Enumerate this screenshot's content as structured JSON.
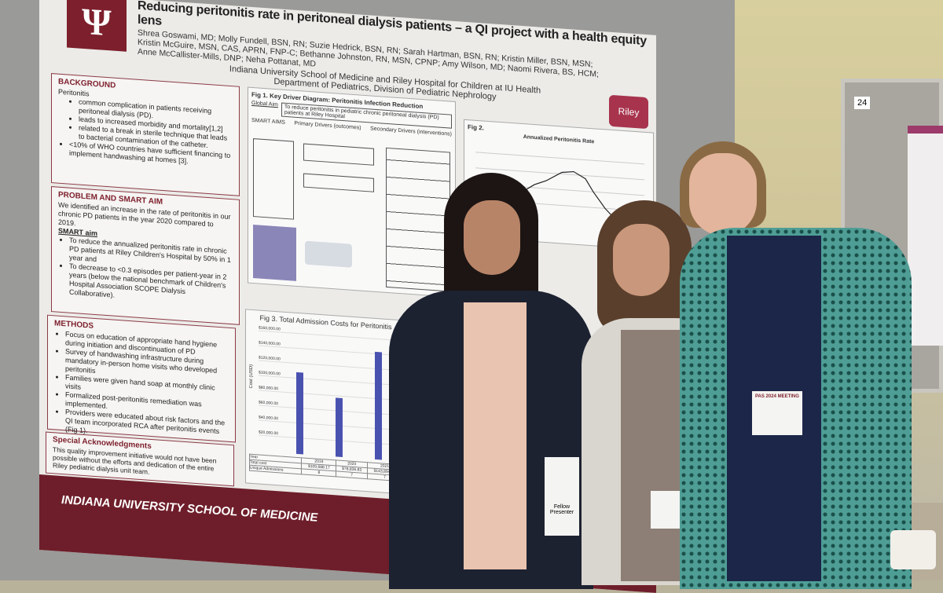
{
  "poster": {
    "title": "Reducing peritonitis rate in peritoneal dialysis patients – a QI project with a health equity lens",
    "authors": "Shrea Goswami, MD; Molly Fundell, BSN, RN; Suzie Hedrick, BSN, RN; Sarah Hartman, BSN, RN; Kristin Miller, BSN, MSN; Kristin McGuire, MSN, CAS, APRN, FNP-C; Bethanne Johnston, RN, MSN, CPNP; Amy Wilson, MD; Naomi Rivera, BS, HCM; Anne McCallister-Mills, DNP; Neha Pottanat, MD",
    "institution": "Indiana University School of Medicine and Riley Hospital for Children at IU Health",
    "department": "Department of Pediatrics, Division of Pediatric Nephrology",
    "logo": "IU",
    "riley_logo": "Riley",
    "background": {
      "heading": "BACKGROUND",
      "intro": "Peritonitis",
      "items": [
        "common complication in patients receiving peritoneal dialysis (PD).",
        "leads to increased morbidity and mortality[1,2]",
        "related to a break in sterile technique that leads to bacterial contamination of the catheter."
      ],
      "extra": "<10% of WHO countries have sufficient financing to implement handwashing at homes [3]."
    },
    "problem": {
      "heading": "PROBLEM AND SMART AIM",
      "text": "We identified an increase in the rate of peritonitis in our chronic PD patients in the year 2020 compared to 2019.",
      "smart_heading": "SMART aim",
      "items": [
        "To reduce the annualized peritonitis rate in chronic PD patients at Riley Children's Hospital by 50% in 1 year and",
        "To decrease to <0.3 episodes per patient-year in 2 years (below the national benchmark of Children's Hospital Association SCOPE Dialysis Collaborative)."
      ]
    },
    "methods": {
      "heading": "METHODS",
      "items": [
        "Focus on education of appropriate hand hygiene during initiation and discontinuation of PD",
        "Survey of handwashing infrastructure during mandatory in-person home visits who developed peritonitis",
        "Families were given hand soap at monthly clinic visits",
        "Formalized post-peritonitis remediation was implemented.",
        "Providers were educated about risk factors and the QI team incorporated RCA after peritonitis events (Fig 1)."
      ]
    },
    "ack": {
      "heading": "Special Acknowledgments",
      "text": "This quality improvement initiative would not have been possible without the efforts and dedication of the entire Riley pediatric dialysis unit team."
    },
    "fig1": {
      "title": "Fig 1. Key Driver Diagram: Peritonitis Infection Reduction",
      "global_aim_label": "Global Aim",
      "global_aim": "To reduce peritonitis in pediatric chronic peritoneal dialysis (PD) patients at Riley Hospital",
      "smart_aims": "SMART AIMS",
      "primary": "Primary Drivers (outcomes)",
      "secondary": "Secondary Drivers (interventions)"
    },
    "fig2": {
      "label": "Fig 2.",
      "title": "Annualized Peritonitis Rate"
    },
    "fig3": {
      "title": "Fig 3.  Total Admission Costs for Peritonitis",
      "ylabel": "Cost (USD)",
      "yticks": [
        "$160,000.00",
        "$140,000.00",
        "$120,000.00",
        "$100,000.00",
        "$80,000.00",
        "$60,000.00",
        "$40,000.00",
        "$20,000.00"
      ],
      "years": [
        "2019",
        "2020",
        "2021"
      ],
      "total_cost": [
        "$109,688.17",
        "$78,836.83",
        "$143,894.42"
      ],
      "admissions": [
        "8",
        "7",
        "7"
      ],
      "bar_color": "#4a52b0"
    },
    "footer": "INDIANA UNIVERSITY SCHOOL OF MEDICINE"
  },
  "booth_number": "24",
  "badges": [
    "Fellow Presenter",
    "PAS 2024 MEETING"
  ]
}
